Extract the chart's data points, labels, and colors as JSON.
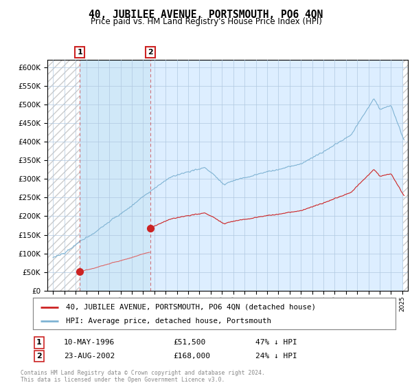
{
  "title": "40, JUBILEE AVENUE, PORTSMOUTH, PO6 4QN",
  "subtitle": "Price paid vs. HM Land Registry's House Price Index (HPI)",
  "legend_line1": "40, JUBILEE AVENUE, PORTSMOUTH, PO6 4QN (detached house)",
  "legend_line2": "HPI: Average price, detached house, Portsmouth",
  "footer": "Contains HM Land Registry data © Crown copyright and database right 2024.\nThis data is licensed under the Open Government Licence v3.0.",
  "transaction1_label": "1",
  "transaction1_date": "10-MAY-1996",
  "transaction1_price": "£51,500",
  "transaction1_hpi": "47% ↓ HPI",
  "transaction2_label": "2",
  "transaction2_date": "23-AUG-2002",
  "transaction2_price": "£168,000",
  "transaction2_hpi": "24% ↓ HPI",
  "sale1_x": 1996.37,
  "sale1_y": 51500,
  "sale2_x": 2002.64,
  "sale2_y": 168000,
  "hpi_color": "#7fb3d3",
  "price_color": "#cc2222",
  "price_color_light": "#ee8888",
  "background_color": "#ddeeff",
  "hatch_bg": "#ffffff",
  "ylim": [
    0,
    620000
  ],
  "xlim_left": 1993.5,
  "xlim_right": 2025.5,
  "grid_color": "#b0c8e0"
}
